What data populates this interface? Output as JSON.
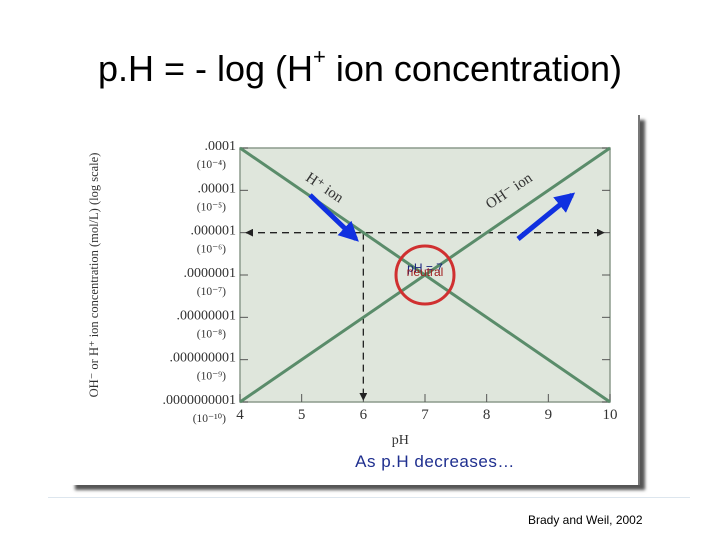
{
  "slide": {
    "title_main": "p.H = - log (H",
    "title_sup": "+",
    "title_rest": " ion concentration)",
    "caption": "As p.H decreases…",
    "source": "Brady and Weil, 2002"
  },
  "colors": {
    "plot_bg": "#dfe6dc",
    "line": "#5a8c6a",
    "arrow": "#1030e0",
    "circle": "#d03030",
    "neutral_label": "#a02020",
    "caption_text": "#1f2f8f"
  },
  "chart_data": {
    "type": "line",
    "title": "",
    "xlabel": "pH",
    "ylabel": "OH⁻ or H⁺ ion concentration (mol/L) (log scale)",
    "xlim": [
      4,
      10
    ],
    "x_ticks": [
      4,
      5,
      6,
      7,
      8,
      9,
      10
    ],
    "y_exponent_range": [
      -10,
      -4
    ],
    "y_ticks": [
      {
        "exp": -4,
        "decimal": ".0001",
        "power": "(10⁻⁴)"
      },
      {
        "exp": -5,
        "decimal": ".00001",
        "power": "(10⁻⁵)"
      },
      {
        "exp": -6,
        "decimal": ".000001",
        "power": "(10⁻⁶)"
      },
      {
        "exp": -7,
        "decimal": ".0000001",
        "power": "(10⁻⁷)"
      },
      {
        "exp": -8,
        "decimal": ".00000001",
        "power": "(10⁻⁸)"
      },
      {
        "exp": -9,
        "decimal": ".000000001",
        "power": "(10⁻⁹)"
      },
      {
        "exp": -10,
        "decimal": ".0000000001",
        "power": "(10⁻¹⁰)"
      }
    ],
    "series": [
      {
        "name": "H⁺ ion",
        "x": [
          4,
          10
        ],
        "y_exp": [
          -4,
          -10
        ]
      },
      {
        "name": "OH⁻ ion",
        "x": [
          4,
          10
        ],
        "y_exp": [
          -10,
          -4
        ]
      }
    ],
    "reference_lines": {
      "horizontal_exp": -6,
      "vertical_x": 6
    },
    "neutral_point": {
      "x": 7,
      "y_exp": -7,
      "label_top": "pH = 7",
      "label_bottom": "neutral"
    }
  }
}
